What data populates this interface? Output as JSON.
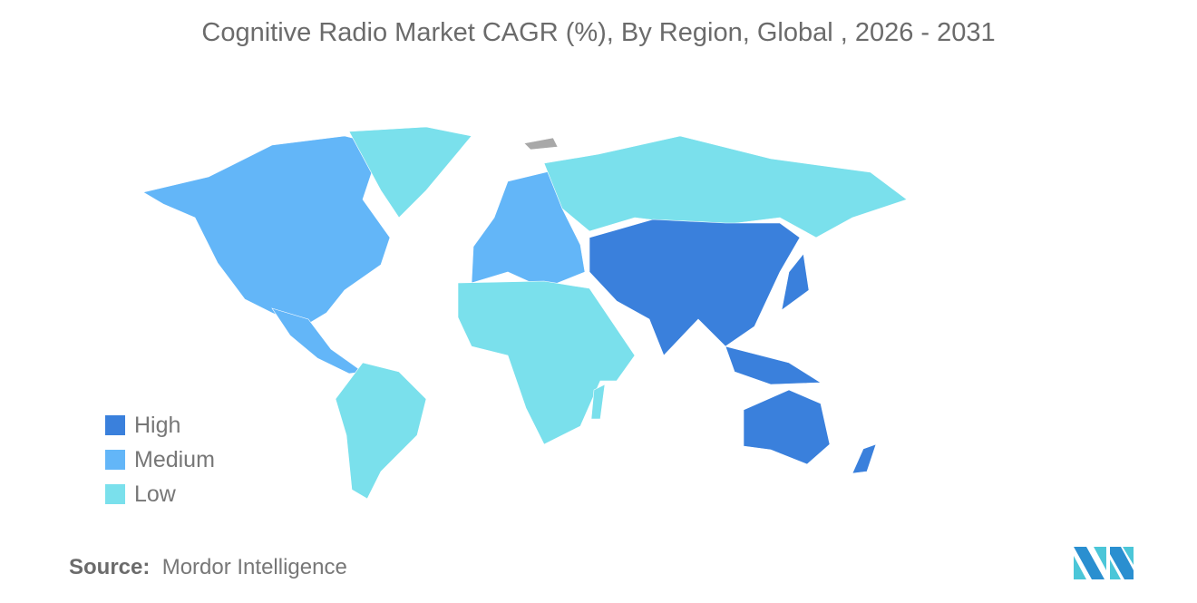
{
  "title": "Cognitive Radio Market CAGR (%), By Region, Global , 2026 - 2031",
  "colors": {
    "high": "#3a80dc",
    "medium": "#63b6f8",
    "low": "#7ae0ec",
    "no_data": "#a8a8a8"
  },
  "legend": [
    {
      "label": "High",
      "color": "#3a80dc"
    },
    {
      "label": "Medium",
      "color": "#63b6f8"
    },
    {
      "label": "Low",
      "color": "#7ae0ec"
    }
  ],
  "regions": {
    "high": [
      "Asia-Pacific"
    ],
    "medium": [
      "North America",
      "Europe"
    ],
    "low": [
      "South America",
      "Middle East and Africa",
      "Russia",
      "Greenland"
    ]
  },
  "source": {
    "label": "Source:",
    "value": "Mordor Intelligence"
  }
}
